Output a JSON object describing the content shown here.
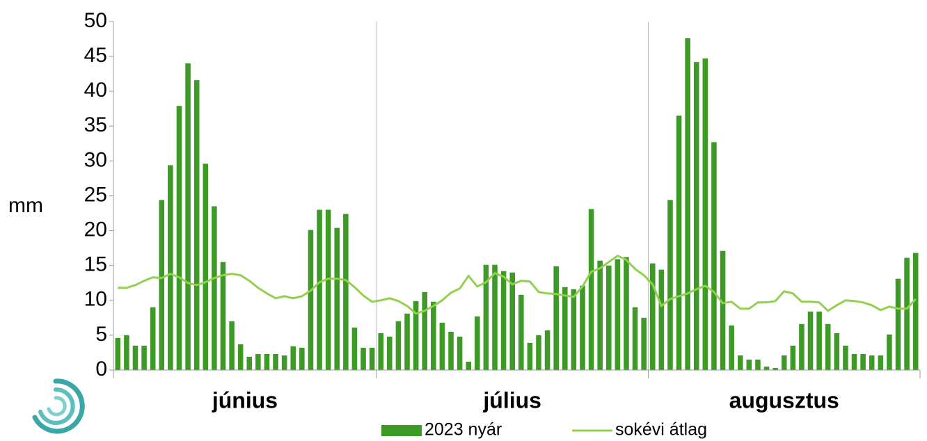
{
  "chart_data": {
    "type": "bar",
    "y_label": "mm",
    "categories": [
      null,
      null,
      null,
      null,
      null,
      null,
      null,
      null,
      null,
      null,
      null,
      null,
      null,
      null,
      null,
      null,
      null,
      null,
      null,
      null,
      null,
      null,
      null,
      null,
      null,
      null,
      null,
      null,
      null,
      null,
      null,
      null,
      null,
      null,
      null,
      null,
      null,
      null,
      null,
      null,
      null,
      null,
      null,
      null,
      null,
      null,
      null,
      null,
      null,
      null,
      null,
      null,
      null,
      null,
      null,
      null,
      null,
      null,
      null,
      null,
      null,
      null,
      null,
      null,
      null,
      null,
      null,
      null,
      null,
      null,
      null,
      null,
      null,
      null,
      null,
      null,
      null,
      null,
      null,
      null,
      null,
      null,
      null,
      null,
      null,
      null,
      null,
      null,
      null,
      null,
      null,
      null
    ],
    "groups": [
      {
        "label": "június",
        "span": 30
      },
      {
        "label": "július",
        "span": 31
      },
      {
        "label": "augusztus",
        "span": 31
      }
    ],
    "series": [
      {
        "name": "2023 nyár",
        "type": "bar",
        "color": "#3d9a26",
        "values": [
          4.6,
          5.0,
          3.5,
          3.5,
          9.0,
          24.4,
          29.4,
          37.9,
          44.0,
          41.6,
          29.6,
          23.5,
          15.5,
          7.0,
          3.7,
          1.9,
          2.3,
          2.3,
          2.3,
          2.1,
          3.4,
          3.2,
          20.1,
          23.0,
          23.0,
          20.4,
          22.4,
          6.1,
          3.2,
          3.2,
          5.3,
          4.8,
          7.0,
          8.1,
          9.9,
          11.2,
          9.8,
          6.8,
          5.5,
          4.8,
          1.2,
          7.7,
          15.1,
          15.1,
          14.2,
          14.0,
          10.8,
          3.9,
          5.0,
          5.7,
          14.9,
          11.9,
          11.6,
          12.1,
          23.1,
          15.7,
          15.0,
          15.9,
          16.2,
          9.0,
          7.5,
          15.3,
          14.4,
          24.4,
          36.5,
          47.6,
          44.2,
          44.7,
          32.7,
          17.1,
          6.4,
          2.1,
          1.5,
          1.5,
          0.5,
          0.3,
          2.1,
          3.5,
          6.6,
          8.4,
          8.4,
          6.6,
          5.3,
          3.5,
          2.3,
          2.3,
          2.1,
          2.1,
          5.1,
          13.1,
          16.1,
          16.8
        ]
      },
      {
        "name": "sokévi átlag",
        "type": "line",
        "color": "#92d050",
        "values": [
          11.8,
          11.8,
          12.2,
          12.8,
          13.3,
          13.2,
          13.8,
          13.3,
          12.5,
          12.2,
          12.6,
          13.2,
          13.6,
          13.8,
          13.6,
          12.8,
          11.8,
          11.0,
          10.3,
          10.6,
          10.3,
          10.6,
          11.4,
          12.6,
          13.1,
          13.1,
          12.9,
          11.9,
          10.7,
          9.8,
          10.0,
          10.3,
          9.9,
          9.2,
          8.1,
          8.5,
          9.2,
          10.0,
          11.1,
          11.7,
          13.5,
          12.0,
          12.6,
          13.9,
          13.4,
          12.3,
          12.8,
          12.7,
          11.2,
          11.0,
          10.9,
          10.7,
          10.5,
          12.0,
          14.1,
          14.6,
          15.5,
          16.4,
          15.8,
          14.5,
          13.6,
          12.3,
          9.2,
          10.2,
          10.6,
          11.0,
          11.6,
          12.1,
          11.2,
          9.6,
          9.8,
          8.8,
          8.8,
          9.7,
          9.7,
          9.9,
          11.3,
          11.0,
          9.8,
          9.8,
          9.7,
          8.5,
          9.3,
          10.0,
          9.9,
          9.7,
          9.3,
          8.6,
          9.1,
          8.8,
          8.8,
          10.2
        ]
      }
    ],
    "ylim": [
      0,
      50
    ],
    "yticks": [
      0,
      5,
      10,
      15,
      20,
      25,
      30,
      35,
      40,
      45,
      50
    ],
    "grid": false
  }
}
